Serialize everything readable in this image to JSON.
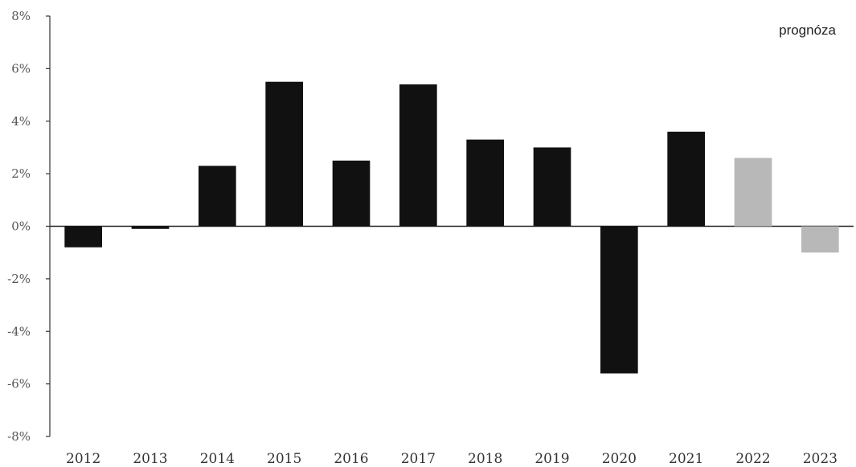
{
  "chart_data": {
    "type": "bar",
    "categories": [
      "2012",
      "2013",
      "2014",
      "2015",
      "2016",
      "2017",
      "2018",
      "2019",
      "2020",
      "2021",
      "2022",
      "2023"
    ],
    "values": [
      -0.8,
      -0.1,
      2.3,
      5.5,
      2.5,
      5.4,
      3.3,
      3.0,
      -5.6,
      3.6,
      2.6,
      -1.0
    ],
    "forecast": [
      false,
      false,
      false,
      false,
      false,
      false,
      false,
      false,
      false,
      false,
      true,
      true
    ],
    "annotation": "prognóza",
    "ylim": [
      -8,
      8
    ],
    "yticks": [
      -8,
      -6,
      -4,
      -2,
      0,
      2,
      4,
      6,
      8
    ],
    "ytick_labels": [
      "-8%",
      "-6%",
      "-4%",
      "-2%",
      "0%",
      "2%",
      "4%",
      "6%",
      "8%"
    ],
    "grid": false,
    "legend": "none",
    "colors": {
      "actual": "#111111",
      "forecast": "#b8b8b8"
    }
  }
}
